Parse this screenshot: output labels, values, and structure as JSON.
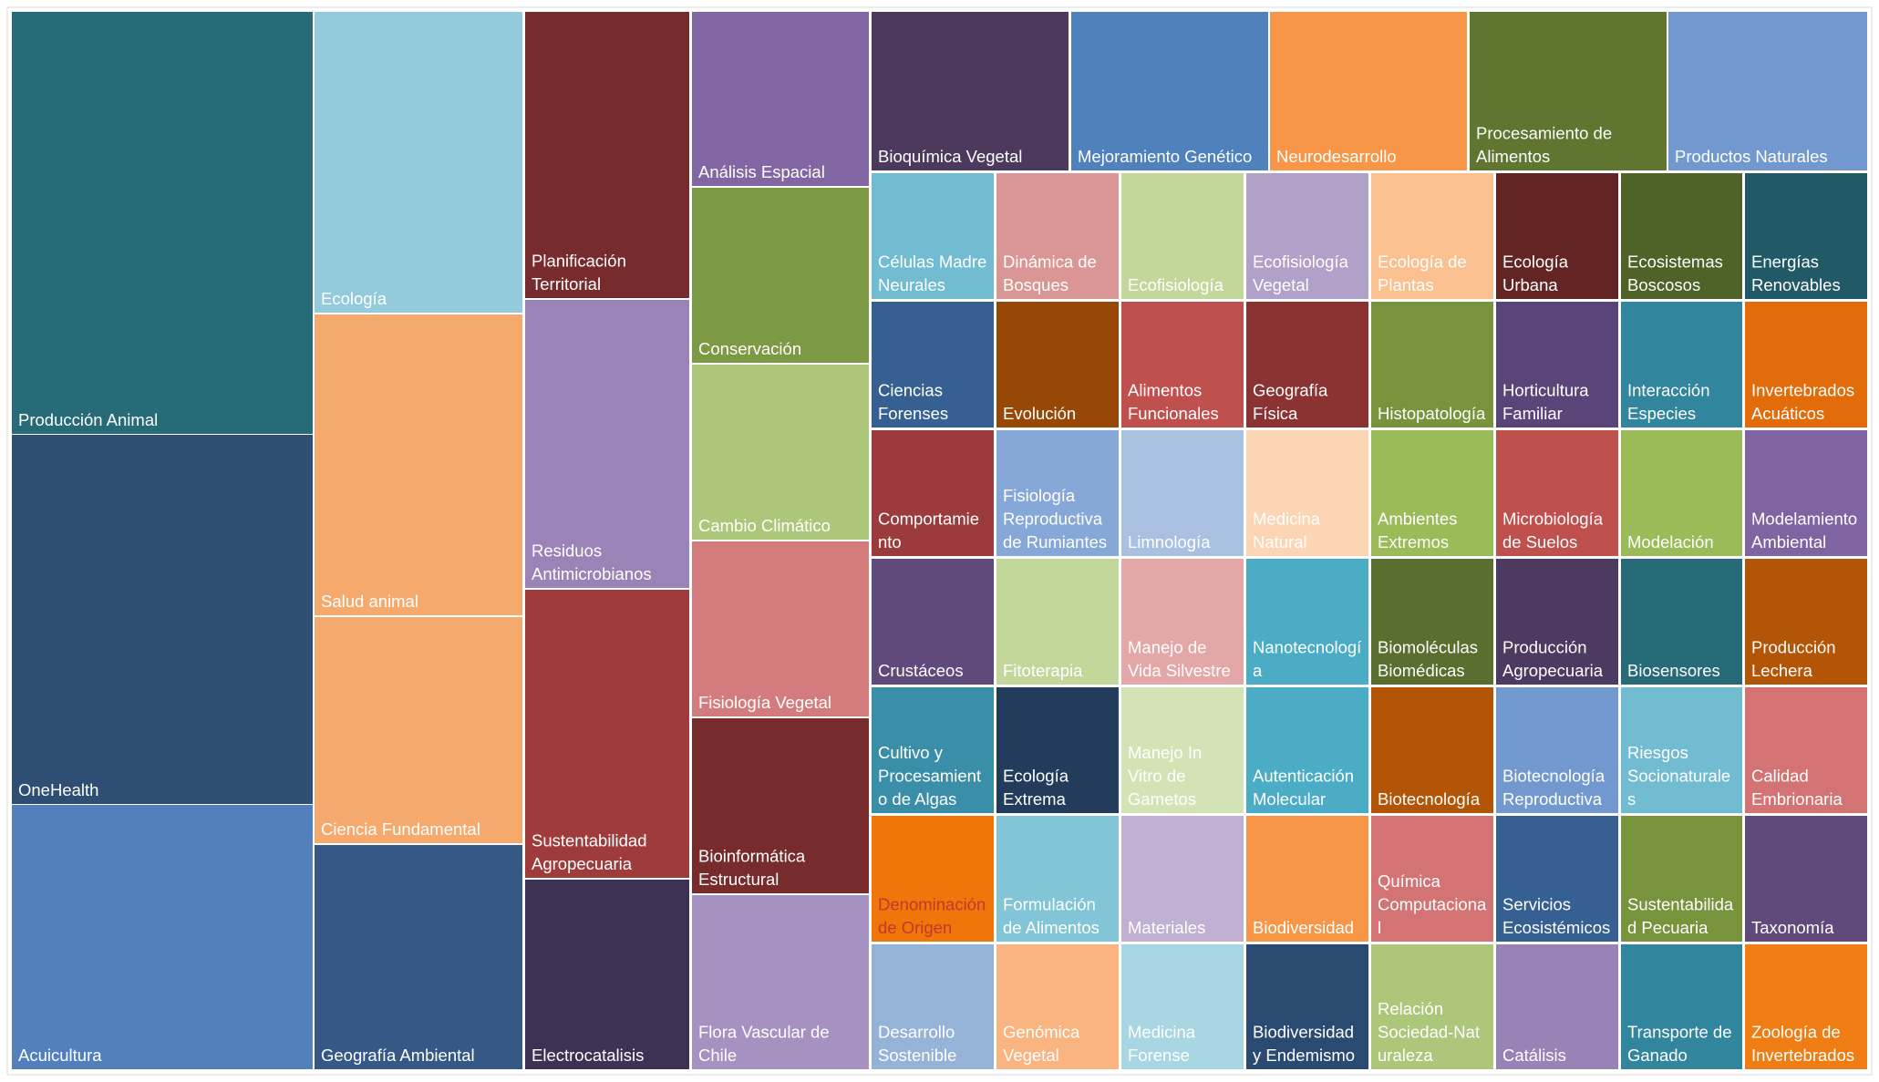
{
  "chart_data": {
    "type": "treemap",
    "title": "",
    "grid": false,
    "legend": "none",
    "tiles": [
      {
        "label": "Producción Animal",
        "color": "#276a78",
        "text": "light"
      },
      {
        "label": "OneHealth",
        "color": "#2f4e74",
        "text": "light"
      },
      {
        "label": "Acuicultura",
        "color": "#5180bd",
        "text": "light"
      },
      {
        "label": "Ecología",
        "color": "#93cbdc",
        "text": "light"
      },
      {
        "label": "Salud animal",
        "color": "#f6a96c",
        "text": "light"
      },
      {
        "label": "Ciencia Fundamental",
        "color": "#f6a96c",
        "text": "light"
      },
      {
        "label": "Geografía Ambiental",
        "color": "#355886",
        "text": "light"
      },
      {
        "label": "Planificación Territorial",
        "color": "#782b2c",
        "text": "light"
      },
      {
        "label": "Residuos Antimicrobianos",
        "color": "#9a83b6",
        "text": "light"
      },
      {
        "label": "Sustentabilidad Agropecuaria",
        "color": "#9f3b3b",
        "text": "light"
      },
      {
        "label": "Electrocatalisis",
        "color": "#3f3153",
        "text": "light"
      },
      {
        "label": "Análisis Espacial",
        "color": "#8266a3",
        "text": "light"
      },
      {
        "label": "Conservación",
        "color": "#7c9a44",
        "text": "light"
      },
      {
        "label": "Cambio Climático",
        "color": "#adc77a",
        "text": "light"
      },
      {
        "label": "Fisiología Vegetal",
        "color": "#d47c7d",
        "text": "light"
      },
      {
        "label": "Bioinformática Estructural",
        "color": "#782b2c",
        "text": "light"
      },
      {
        "label": "Flora Vascular de Chile",
        "color": "#a592c0",
        "text": "light"
      },
      {
        "label": "Bioquímica Vegetal",
        "color": "#4b3a5e",
        "text": "light"
      },
      {
        "label": "Mejoramiento Genético",
        "color": "#4f81bd",
        "text": "light"
      },
      {
        "label": "Neurodesarrollo",
        "color": "#f79646",
        "text": "light"
      },
      {
        "label": "Procesamiento de Alimentos",
        "color": "#5f7530",
        "text": "light"
      },
      {
        "label": "Productos Naturales",
        "color": "#7299cf",
        "text": "light"
      },
      {
        "label": "Células Madre Neurales",
        "color": "#72bcd2",
        "text": "light"
      },
      {
        "label": "Dinámica de Bosques",
        "color": "#da9694",
        "text": "light"
      },
      {
        "label": "Ecofisiología",
        "color": "#c4d79b",
        "text": "light"
      },
      {
        "label": "Ecofisiología Vegetal",
        "color": "#b1a0c7",
        "text": "light"
      },
      {
        "label": "Ecología de Plantas",
        "color": "#fac090",
        "text": "light"
      },
      {
        "label": "Ecología Urbana",
        "color": "#632523",
        "text": "light"
      },
      {
        "label": "Ecosistemas Boscosos",
        "color": "#4f6228",
        "text": "light"
      },
      {
        "label": "Energías Renovables",
        "color": "#215967",
        "text": "light"
      },
      {
        "label": "Ciencias Forenses",
        "color": "#366092",
        "text": "light"
      },
      {
        "label": "Evolución",
        "color": "#974806",
        "text": "light"
      },
      {
        "label": "Alimentos Funcionales",
        "color": "#c0504d",
        "text": "light"
      },
      {
        "label": "Geografía Física",
        "color": "#8b3232",
        "text": "light"
      },
      {
        "label": "Histopatología",
        "color": "#77933c",
        "text": "light"
      },
      {
        "label": "Horticultura Familiar",
        "color": "#5a4578",
        "text": "light"
      },
      {
        "label": "Interacción Especies",
        "color": "#31859c",
        "text": "light"
      },
      {
        "label": "Invertebrados Acuáticos",
        "color": "#e26b0a",
        "text": "light"
      },
      {
        "label": "Comportamiento",
        "color": "#9b3b3e",
        "text": "light"
      },
      {
        "label": "Fisiología Reproductiva de Rumiantes",
        "color": "#86a8d8",
        "text": "light"
      },
      {
        "label": "Limnología",
        "color": "#a9c0e0",
        "text": "light"
      },
      {
        "label": "Medicina Natural",
        "color": "#fcd5b4",
        "text": "light"
      },
      {
        "label": "Ambientes Extremos",
        "color": "#9bbb59",
        "text": "light"
      },
      {
        "label": "Microbiología de Suelos",
        "color": "#c0504d",
        "text": "light"
      },
      {
        "label": "Modelación",
        "color": "#9bbb59",
        "text": "light"
      },
      {
        "label": "Modelamiento Ambiental",
        "color": "#8064a2",
        "text": "light"
      },
      {
        "label": "Crustáceos",
        "color": "#604a7b",
        "text": "light"
      },
      {
        "label": "Fitoterapia",
        "color": "#c4d79b",
        "text": "light"
      },
      {
        "label": "Manejo de Vida Silvestre",
        "color": "#e3a7a7",
        "text": "light"
      },
      {
        "label": "Nanotecnología",
        "color": "#4bacc6",
        "text": "light"
      },
      {
        "label": "Biomoléculas Biomédicas",
        "color": "#5a6e30",
        "text": "light"
      },
      {
        "label": "Producción Agropecuaria",
        "color": "#4c3a60",
        "text": "light"
      },
      {
        "label": "Biosensores",
        "color": "#276a78",
        "text": "light"
      },
      {
        "label": "Producción Lechera",
        "color": "#b35507",
        "text": "light"
      },
      {
        "label": "Cultivo y Procesamiento de Algas",
        "color": "#3a8ea8",
        "text": "light"
      },
      {
        "label": "Ecología Extrema",
        "color": "#243c5c",
        "text": "light"
      },
      {
        "label": "Manejo In Vitro de Gametos",
        "color": "#d4e3b6",
        "text": "light"
      },
      {
        "label": "Autenticación Molecular",
        "color": "#4bacc6",
        "text": "light"
      },
      {
        "label": "Biotecnología",
        "color": "#b35507",
        "text": "light"
      },
      {
        "label": "Biotecnología Reproductiva",
        "color": "#7299cf",
        "text": "light"
      },
      {
        "label": "Riesgos Socionaturales",
        "color": "#72bcd2",
        "text": "light"
      },
      {
        "label": "Calidad Embrionaria",
        "color": "#d47373",
        "text": "light"
      },
      {
        "label": "Denominación de Origen",
        "color": "#f0760c",
        "text": "dark"
      },
      {
        "label": "Formulación de Alimentos",
        "color": "#82c5d6",
        "text": "light"
      },
      {
        "label": "Materiales",
        "color": "#c0b0d3",
        "text": "light"
      },
      {
        "label": "Biodiversidad",
        "color": "#f79646",
        "text": "light"
      },
      {
        "label": "Química Computacional",
        "color": "#d47373",
        "text": "light"
      },
      {
        "label": "Servicios Ecosistémicos",
        "color": "#366092",
        "text": "light"
      },
      {
        "label": "Sustentabilidad Pecuaria",
        "color": "#77933c",
        "text": "light"
      },
      {
        "label": "Taxonomía",
        "color": "#604a7b",
        "text": "light"
      },
      {
        "label": "Desarrollo Sostenible",
        "color": "#95b3d7",
        "text": "light"
      },
      {
        "label": "Genómica Vegetal",
        "color": "#fab47f",
        "text": "light"
      },
      {
        "label": "Medicina Forense",
        "color": "#a8d6e3",
        "text": "light"
      },
      {
        "label": "Biodiversidad y Endemismo",
        "color": "#2b4a72",
        "text": "light"
      },
      {
        "label": "Relación Sociedad-Naturaleza",
        "color": "#adc77a",
        "text": "light"
      },
      {
        "label": "Catálisis",
        "color": "#9982b5",
        "text": "light"
      },
      {
        "label": "Transporte de Ganado",
        "color": "#31859c",
        "text": "light"
      },
      {
        "label": "Zoología de Invertebrados",
        "color": "#f07c14",
        "text": "light"
      }
    ]
  }
}
